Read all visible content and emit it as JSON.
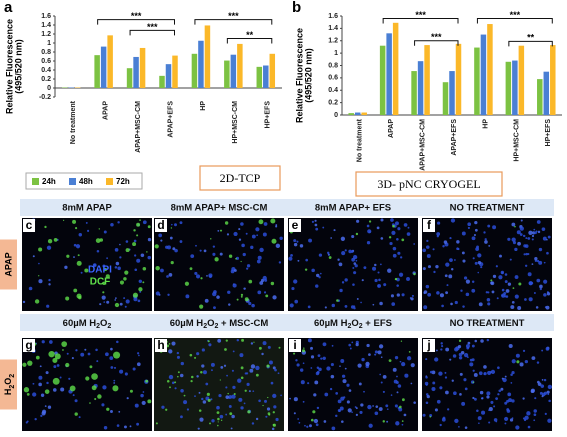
{
  "chart_data": [
    {
      "type": "bar",
      "panel": "a",
      "y_label": [
        "Relative Fluorescence",
        "(495/520 nm)"
      ],
      "categories": [
        "No treatment",
        "APAP",
        "APAP+MSC-CM",
        "APAP+EFS",
        "HP",
        "HP+MSC-CM",
        "HP+EFS"
      ],
      "series": [
        {
          "name": "24h",
          "color": "#7cc242",
          "values": [
            0.01,
            0.73,
            0.44,
            0.27,
            0.76,
            0.61,
            0.47
          ]
        },
        {
          "name": "48h",
          "color": "#4a7fd4",
          "values": [
            0.01,
            0.92,
            0.69,
            0.53,
            1.05,
            0.74,
            0.5
          ]
        },
        {
          "name": "72h",
          "color": "#fbb829",
          "values": [
            0.01,
            1.17,
            0.89,
            0.72,
            1.39,
            0.98,
            0.76
          ]
        }
      ],
      "ylim": [
        -0.2,
        1.6
      ],
      "yticks": [
        -0.2,
        0,
        0.2,
        0.4,
        0.6,
        0.8,
        1,
        1.2,
        1.4,
        1.6
      ],
      "annotations": [
        "***",
        "***",
        "***",
        "**"
      ],
      "condition": "2D-TCP"
    },
    {
      "type": "bar",
      "panel": "b",
      "y_label": [
        "Relative Fluorescence",
        "(495/520 nm)"
      ],
      "categories": [
        "No treatment",
        "APAP",
        "APAP+MSC-CM",
        "APAP+EFS",
        "HP",
        "HP+MSC-CM",
        "HP+EFS"
      ],
      "series": [
        {
          "name": "24h",
          "color": "#7cc242",
          "values": [
            0.03,
            1.12,
            0.71,
            0.53,
            1.09,
            0.86,
            0.58
          ]
        },
        {
          "name": "48h",
          "color": "#4a7fd4",
          "values": [
            0.04,
            1.32,
            0.87,
            0.71,
            1.3,
            0.88,
            0.7
          ]
        },
        {
          "name": "72h",
          "color": "#fbb829",
          "values": [
            0.04,
            1.49,
            1.13,
            1.15,
            1.47,
            1.12,
            1.13
          ]
        }
      ],
      "ylim": [
        0,
        1.6
      ],
      "yticks": [
        0,
        0.2,
        0.4,
        0.6,
        0.8,
        1,
        1.2,
        1.4,
        1.6
      ],
      "annotations": [
        "***",
        "***",
        "***",
        "**"
      ],
      "condition": "3D- pNC CRYOGEL"
    }
  ],
  "images": {
    "rows": [
      {
        "label": "APAP",
        "headers": [
          "8mM APAP",
          "8mM APAP+ MSC-CM",
          "8mM APAP+ EFS",
          "NO TREATMENT"
        ],
        "panels": [
          "c",
          "d",
          "e",
          "f"
        ]
      },
      {
        "label": [
          "H",
          "2",
          "O",
          "2"
        ],
        "headers": [
          [
            "60µM H",
            "2",
            "O",
            "2"
          ],
          [
            "60µM H",
            "2",
            "O",
            "2",
            " + MSC-CM"
          ],
          [
            "60µM H",
            "2",
            "O",
            "2",
            " + EFS"
          ],
          [
            "NO TREATMENT"
          ]
        ],
        "panels": [
          "g",
          "h",
          "i",
          "j"
        ]
      }
    ],
    "stains": [
      "DAPI",
      "DCF"
    ]
  }
}
